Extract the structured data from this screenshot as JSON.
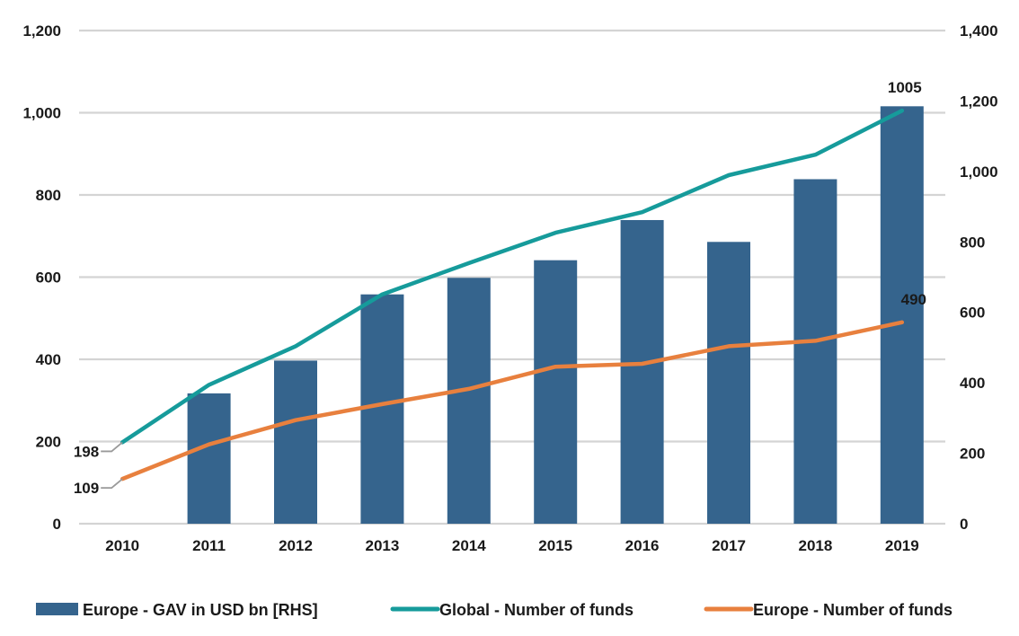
{
  "chart_data": {
    "type": "bar",
    "categories": [
      "2010",
      "2011",
      "2012",
      "2013",
      "2014",
      "2015",
      "2016",
      "2017",
      "2018",
      "2019"
    ],
    "series": [
      {
        "name": "Europe - GAV in USD bn [RHS]",
        "type": "bar",
        "axis": "right",
        "color": "#35648d",
        "values": [
          0,
          370,
          463,
          651,
          698,
          748,
          862,
          800,
          978,
          1185
        ]
      },
      {
        "name": "Global - Number of funds",
        "type": "line",
        "axis": "left",
        "color": "#169b9b",
        "values": [
          198,
          338,
          432,
          558,
          634,
          708,
          758,
          848,
          898,
          1005
        ]
      },
      {
        "name": "Europe - Number of funds",
        "type": "line",
        "axis": "left",
        "color": "#e8803e",
        "values": [
          109,
          193,
          252,
          291,
          328,
          382,
          389,
          432,
          445,
          490
        ]
      }
    ],
    "left_axis": {
      "min": 0,
      "max": 1200,
      "ticks": [
        "0",
        "200",
        "400",
        "600",
        "800",
        "1,000",
        "1,200"
      ]
    },
    "right_axis": {
      "min": 0,
      "max": 1400,
      "ticks": [
        "0",
        "200",
        "400",
        "600",
        "800",
        "1,000",
        "1,200",
        "1,400"
      ]
    },
    "data_labels": [
      {
        "series": 1,
        "index": 0,
        "text": "198"
      },
      {
        "series": 2,
        "index": 0,
        "text": "109"
      },
      {
        "series": 1,
        "index": 9,
        "text": "1005"
      },
      {
        "series": 2,
        "index": 9,
        "text": "490"
      }
    ],
    "grid": true,
    "legend": "bottom"
  }
}
